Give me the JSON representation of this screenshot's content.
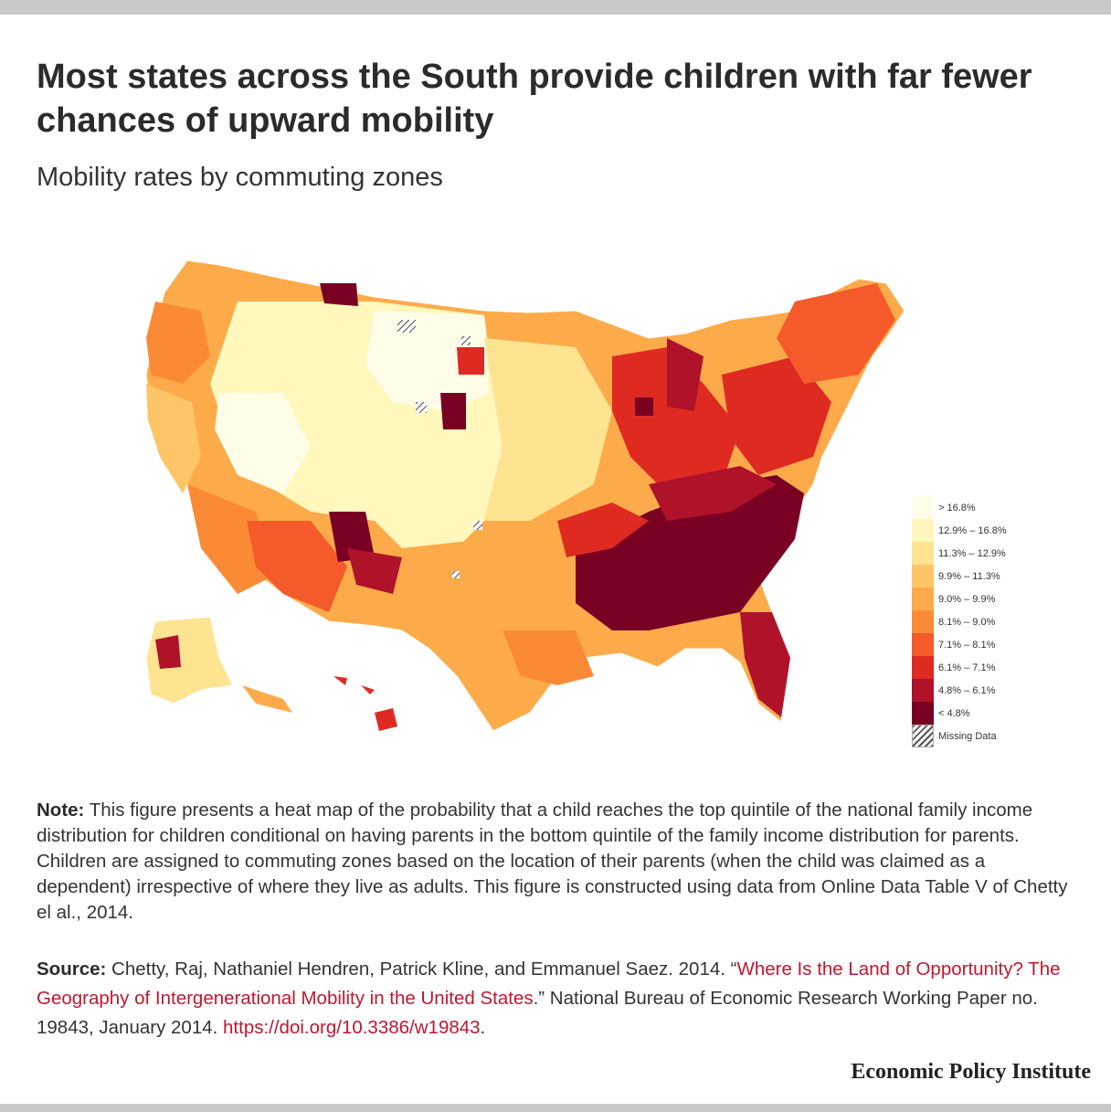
{
  "title": "Most states across the South provide children with far fewer chances of upward mobility",
  "subtitle": "Mobility rates by commuting zones",
  "legend": {
    "items": [
      {
        "label": "> 16.8%",
        "color": "#fffde8"
      },
      {
        "label": "12.9% – 16.8%",
        "color": "#fff7bc"
      },
      {
        "label": "11.3% – 12.9%",
        "color": "#fee391"
      },
      {
        "label": "9.9% – 11.3%",
        "color": "#fec568"
      },
      {
        "label": "9.0% – 9.9%",
        "color": "#fdab4a"
      },
      {
        "label": "8.1% – 9.0%",
        "color": "#fb8a37"
      },
      {
        "label": "7.1% – 8.1%",
        "color": "#f45a2a"
      },
      {
        "label": "6.1% – 7.1%",
        "color": "#df2a22"
      },
      {
        "label": "4.8% – 6.1%",
        "color": "#b0122a"
      },
      {
        "label": "< 4.8%",
        "color": "#7a0023"
      }
    ],
    "missing_label": "Missing Data"
  },
  "note": {
    "lead": "Note:",
    "text": " This figure presents a heat map of the probability that a child reaches the top quintile of the national family income distribution for children conditional on having parents in the bottom quintile of the family income distribution for parents. Children are assigned to commuting zones based on the location of their parents (when the child was claimed as a dependent) irrespective of where they live as adults. This figure is constructed using data from Online Data Table V of Chetty el al., 2014."
  },
  "source": {
    "lead": "Source:",
    "text1": " Chetty, Raj, Nathaniel Hendren, Patrick Kline, and Emmanuel Saez. 2014. “",
    "link_title": "Where Is the Land of Opportunity? The Geography of Intergenerational Mobility in the United States",
    "text2": ".” National Bureau of Economic Research Working Paper no. 19843, January 2014. ",
    "url": "https://doi.org/10.3386/w19843",
    "text3": "."
  },
  "brand": "Economic Policy Institute"
}
